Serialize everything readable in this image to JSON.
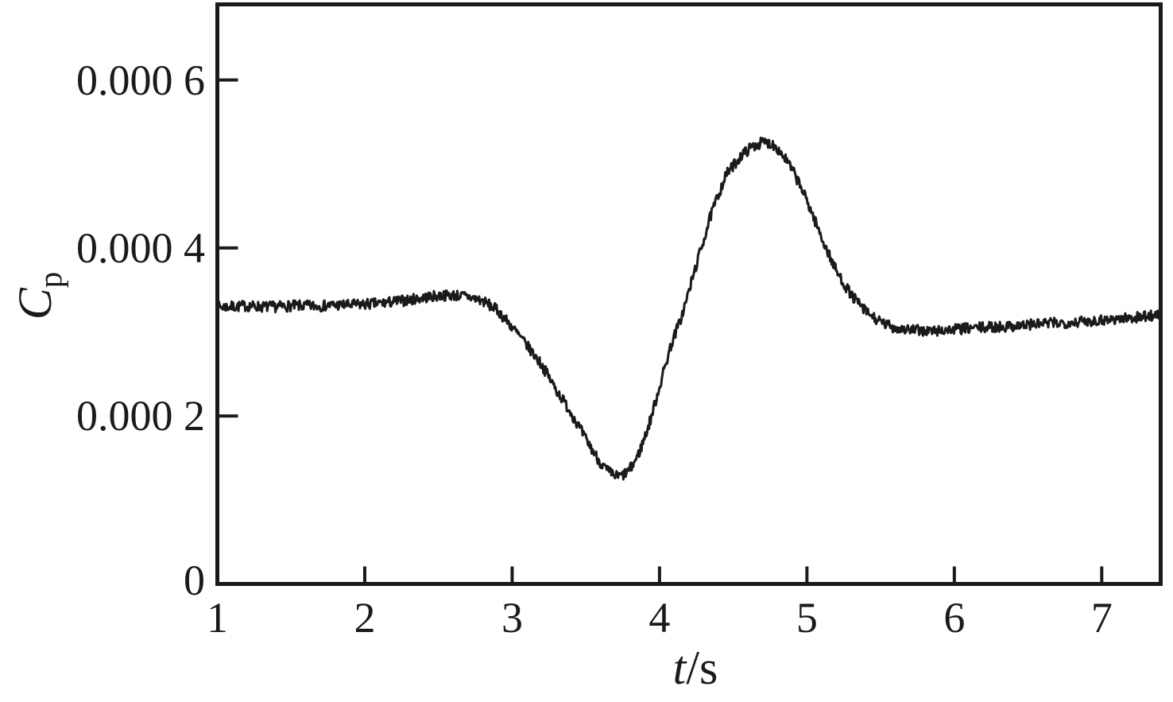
{
  "chart_data": {
    "type": "line",
    "title": "",
    "xlabel_symbol": "t",
    "xlabel_unit": "/s",
    "ylabel_symbol": "C",
    "ylabel_subscript": "p",
    "xlim": [
      1,
      7.4
    ],
    "ylim": [
      0,
      0.00069
    ],
    "xticks": [
      {
        "value": 1,
        "label": "1"
      },
      {
        "value": 2,
        "label": "2"
      },
      {
        "value": 3,
        "label": "3"
      },
      {
        "value": 4,
        "label": "4"
      },
      {
        "value": 5,
        "label": "5"
      },
      {
        "value": 6,
        "label": "6"
      },
      {
        "value": 7,
        "label": "7"
      }
    ],
    "yticks": [
      {
        "value": 0,
        "label": "0"
      },
      {
        "value": 0.0002,
        "label": "0.000 2"
      },
      {
        "value": 0.0004,
        "label": "0.000 4"
      },
      {
        "value": 0.0006,
        "label": "0.000 6"
      }
    ],
    "grid": false,
    "legend": false,
    "background_color": "#ffffff",
    "axis_color": "#1a1a1a",
    "line_color": "#1a1a1a",
    "noise_amplitude": 6.5e-06,
    "series": [
      {
        "name": "Cp",
        "points": [
          [
            1.0,
            0.00033
          ],
          [
            1.1,
            0.00033
          ],
          [
            1.2,
            0.000331
          ],
          [
            1.3,
            0.00033
          ],
          [
            1.4,
            0.00033
          ],
          [
            1.5,
            0.000331
          ],
          [
            1.6,
            0.000331
          ],
          [
            1.7,
            0.000331
          ],
          [
            1.8,
            0.000332
          ],
          [
            1.9,
            0.000332
          ],
          [
            2.0,
            0.000333
          ],
          [
            2.1,
            0.000334
          ],
          [
            2.2,
            0.000336
          ],
          [
            2.3,
            0.000338
          ],
          [
            2.4,
            0.000341
          ],
          [
            2.5,
            0.000343
          ],
          [
            2.6,
            0.000344
          ],
          [
            2.7,
            0.000342
          ],
          [
            2.8,
            0.000337
          ],
          [
            2.9,
            0.000326
          ],
          [
            3.0,
            0.000306
          ],
          [
            3.1,
            0.000284
          ],
          [
            3.2,
            0.000261
          ],
          [
            3.3,
            0.000231
          ],
          [
            3.4,
            0.000204
          ],
          [
            3.5,
            0.000172
          ],
          [
            3.6,
            0.000144
          ],
          [
            3.65,
            0.000134
          ],
          [
            3.7,
            0.000128
          ],
          [
            3.75,
            0.000129
          ],
          [
            3.8,
            0.000136
          ],
          [
            3.86,
            0.000155
          ],
          [
            3.93,
            0.00019
          ],
          [
            4.0,
            0.000235
          ],
          [
            4.08,
            0.000286
          ],
          [
            4.15,
            0.000318
          ],
          [
            4.25,
            0.00038
          ],
          [
            4.35,
            0.00044
          ],
          [
            4.45,
            0.000487
          ],
          [
            4.55,
            0.000509
          ],
          [
            4.62,
            0.00052
          ],
          [
            4.7,
            0.000526
          ],
          [
            4.78,
            0.000523
          ],
          [
            4.86,
            0.000505
          ],
          [
            4.94,
            0.00048
          ],
          [
            5.02,
            0.000448
          ],
          [
            5.1,
            0.000412
          ],
          [
            5.2,
            0.000372
          ],
          [
            5.3,
            0.000344
          ],
          [
            5.4,
            0.000324
          ],
          [
            5.5,
            0.000311
          ],
          [
            5.6,
            0.000305
          ],
          [
            5.72,
            0.000302
          ],
          [
            5.85,
            0.000301
          ],
          [
            6.0,
            0.000303
          ],
          [
            6.15,
            0.000305
          ],
          [
            6.3,
            0.000306
          ],
          [
            6.45,
            0.000308
          ],
          [
            6.6,
            0.00031
          ],
          [
            6.75,
            0.000311
          ],
          [
            6.9,
            0.000313
          ],
          [
            7.05,
            0.000315
          ],
          [
            7.2,
            0.000317
          ],
          [
            7.3,
            0.000319
          ],
          [
            7.4,
            0.000321
          ]
        ]
      }
    ]
  }
}
